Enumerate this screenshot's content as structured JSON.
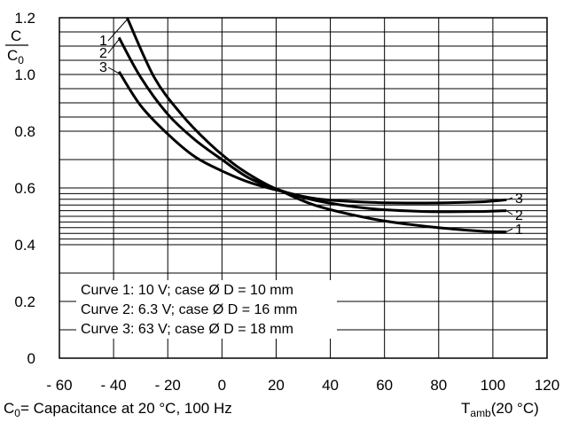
{
  "chart_data": {
    "type": "line",
    "ylabel_num": "C",
    "ylabel_den_main": "C",
    "ylabel_den_sub": "0",
    "xlabel_main": "T",
    "xlabel_sub": "amb",
    "xlabel_unit": "(20 °C)",
    "footnote_main": "C",
    "footnote_sub": "0",
    "footnote_text": "= Capacitance at 20 °C, 100 Hz",
    "xlim": [
      -60,
      120
    ],
    "ylim": [
      0,
      1.2
    ],
    "x_ticks": [
      -60,
      -40,
      -20,
      0,
      20,
      40,
      60,
      80,
      100,
      120
    ],
    "x_tick_labels": [
      "- 60",
      "- 40",
      "- 20",
      "0",
      "20",
      "40",
      "60",
      "80",
      "100",
      "120"
    ],
    "y_ticks": [
      0,
      0.2,
      0.4,
      0.6,
      0.8,
      1.0,
      1.2
    ],
    "y_tick_labels": [
      "0",
      "0.2",
      "0.4",
      "0.6",
      "0.8",
      "1.0",
      "1.2"
    ],
    "grid": true,
    "legend_text": [
      "Curve 1: 10 V; case Ø D = 10 mm",
      "Curve 2: 6.3 V; case Ø D = 16 mm",
      "Curve 3: 63 V; case Ø D = 18 mm"
    ],
    "series": [
      {
        "name": "1",
        "x": [
          -35,
          -25,
          -15,
          -5,
          5,
          15,
          22,
          35,
          55,
          75,
          95,
          105
        ],
        "y": [
          1.2,
          0.99,
          0.86,
          0.76,
          0.68,
          0.62,
          0.588,
          0.537,
          0.492,
          0.465,
          0.448,
          0.445
        ]
      },
      {
        "name": "2",
        "x": [
          -38,
          -30,
          -20,
          -10,
          0,
          10,
          22,
          35,
          55,
          75,
          95,
          105
        ],
        "y": [
          1.13,
          0.99,
          0.86,
          0.77,
          0.7,
          0.635,
          0.59,
          0.555,
          0.527,
          0.517,
          0.517,
          0.52
        ]
      },
      {
        "name": "3",
        "x": [
          -38,
          -30,
          -20,
          -10,
          0,
          10,
          22,
          35,
          55,
          75,
          95,
          105
        ],
        "y": [
          1.01,
          0.89,
          0.79,
          0.71,
          0.66,
          0.62,
          0.588,
          0.562,
          0.549,
          0.547,
          0.551,
          0.558
        ]
      }
    ]
  }
}
